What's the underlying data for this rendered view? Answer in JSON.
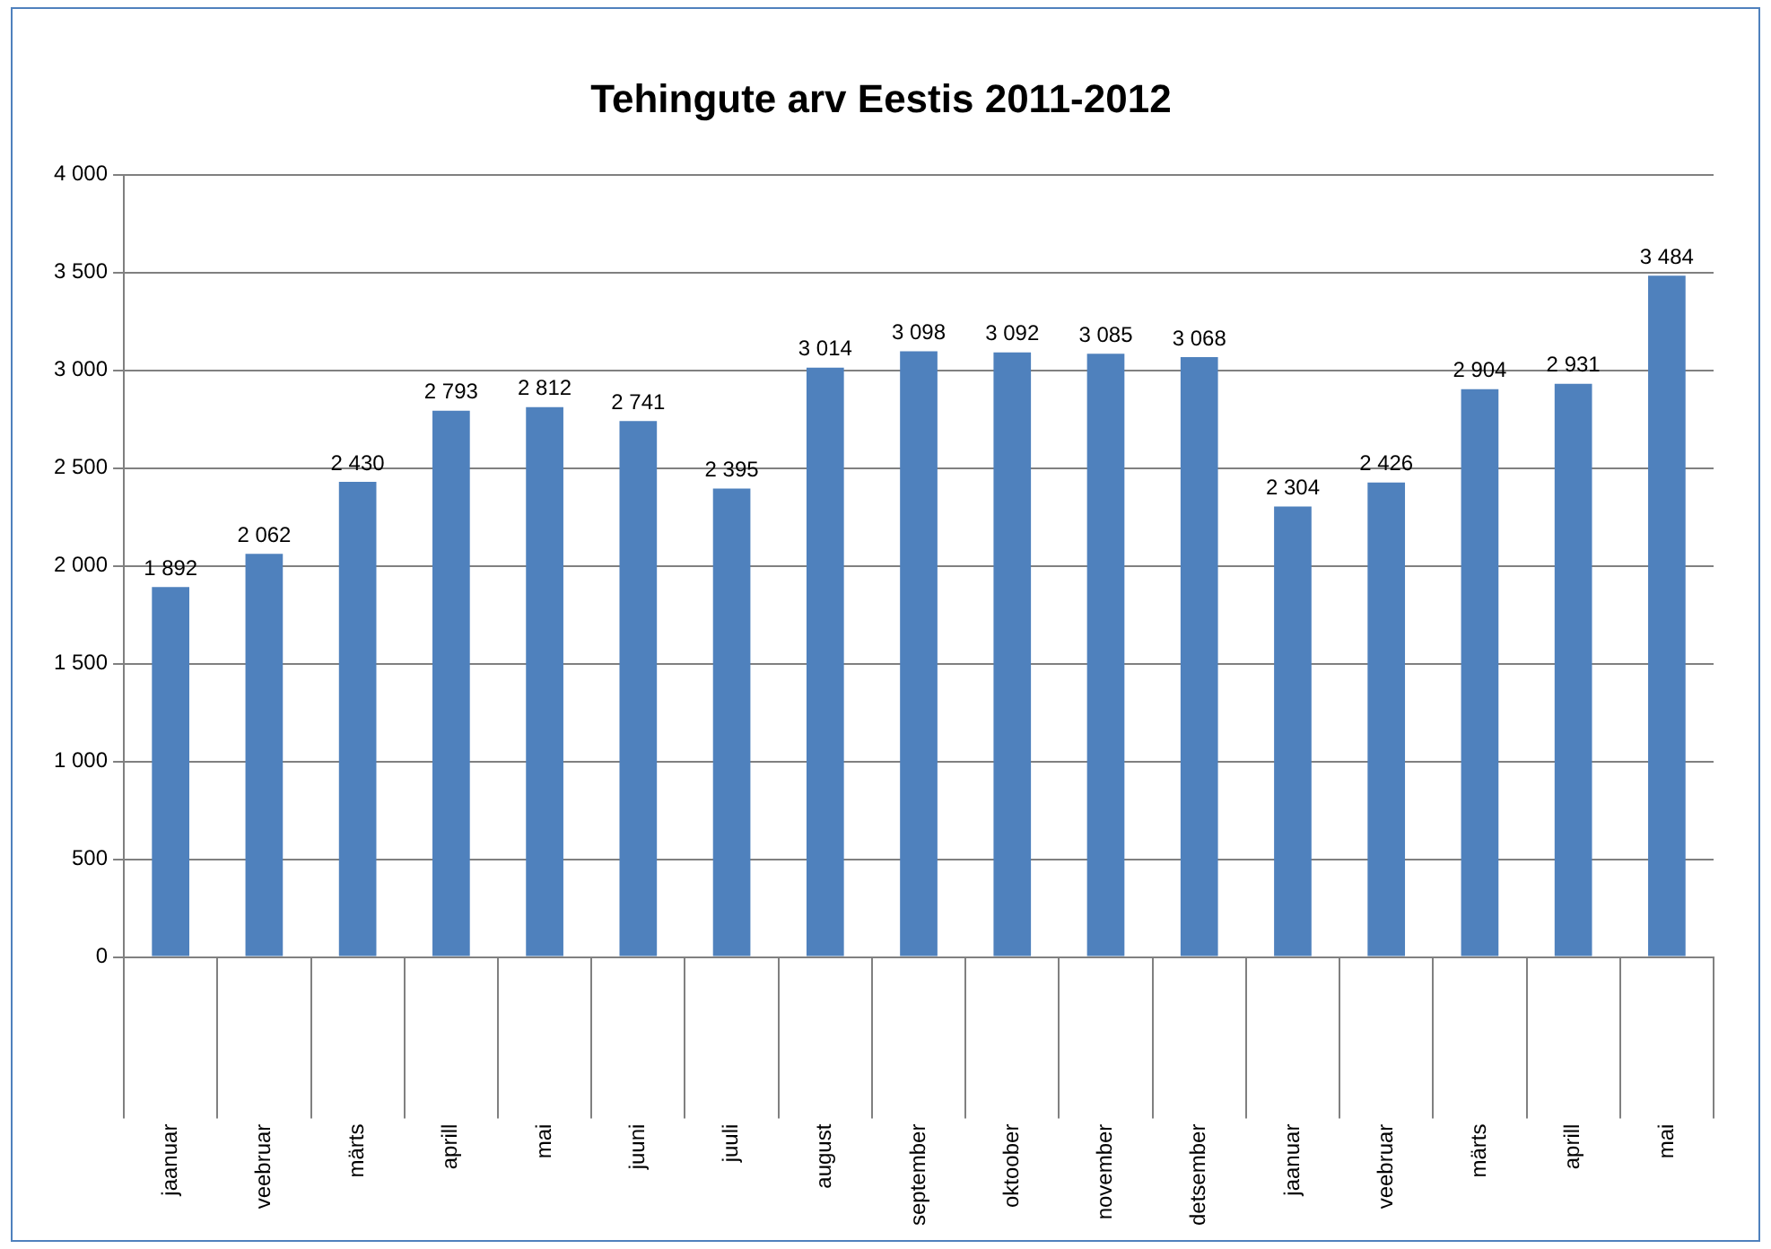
{
  "chart_data": {
    "type": "bar",
    "title": "Tehingute arv Eestis 2011-2012",
    "categories": [
      "jaanuar",
      "veebruar",
      "märts",
      "aprill",
      "mai",
      "juuni",
      "juuli",
      "august",
      "september",
      "oktoober",
      "november",
      "detsember",
      "jaanuar",
      "veebruar",
      "märts",
      "aprill",
      "mai"
    ],
    "values": [
      1892,
      2062,
      2430,
      2793,
      2812,
      2741,
      2395,
      3014,
      3098,
      3092,
      3085,
      3068,
      2304,
      2426,
      2904,
      2931,
      3484
    ],
    "value_labels": [
      "1 892",
      "2 062",
      "2 430",
      "2 793",
      "2 812",
      "2 741",
      "2 395",
      "3 014",
      "3 098",
      "3 092",
      "3 085",
      "3 068",
      "2 304",
      "2 426",
      "2 904",
      "2 931",
      "3 484"
    ],
    "color": "#4f81bd",
    "ylim": [
      0,
      4000
    ],
    "yticks": [
      0,
      500,
      {
        "value": 1000,
        "label": "1 000"
      },
      {
        "value": 1500,
        "label": "1 500"
      },
      {
        "value": 2000,
        "label": "2 000"
      },
      {
        "value": 2500,
        "label": "2 500"
      },
      {
        "value": 3000,
        "label": "3 000"
      },
      {
        "value": 3500,
        "label": "3 500"
      },
      {
        "value": 4000,
        "label": "4 000"
      }
    ],
    "grid": "y",
    "legend": false
  }
}
